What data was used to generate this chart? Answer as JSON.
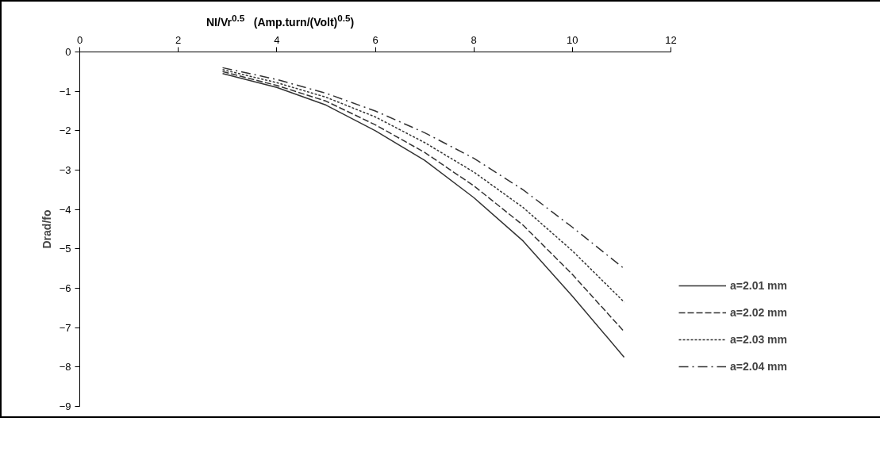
{
  "chart_data": {
    "type": "line",
    "xlabel": "NI/Vr$^{0.5}$   (Amp.turn/(Volt)$^{0.5}$)",
    "ylabel": "Drad/fo",
    "x": [
      2.9,
      4,
      5,
      6,
      7,
      8,
      9,
      10,
      11.05
    ],
    "series": [
      {
        "name": "a=2.01 mm",
        "color": "#333333",
        "line_style": "solid",
        "values": [
          -0.55,
          -0.9,
          -1.35,
          -2.0,
          -2.75,
          -3.7,
          -4.8,
          -6.2,
          -7.75
        ]
      },
      {
        "name": "a=2.02 mm",
        "color": "#333333",
        "line_style": "dashed",
        "values": [
          -0.5,
          -0.85,
          -1.25,
          -1.85,
          -2.55,
          -3.4,
          -4.4,
          -5.65,
          -7.1
        ]
      },
      {
        "name": "a=2.03 mm",
        "color": "#333333",
        "line_style": "dotted",
        "values": [
          -0.45,
          -0.78,
          -1.15,
          -1.65,
          -2.3,
          -3.05,
          -3.95,
          -5.05,
          -6.35
        ]
      },
      {
        "name": "a=2.04 mm",
        "color": "#333333",
        "line_style": "dashdot",
        "values": [
          -0.4,
          -0.7,
          -1.05,
          -1.5,
          -2.05,
          -2.7,
          -3.5,
          -4.45,
          -5.5
        ]
      }
    ],
    "xlim": [
      0,
      12
    ],
    "xticks": [
      0,
      2,
      4,
      6,
      8,
      10,
      12
    ],
    "ylim": [
      -9,
      0
    ],
    "yticks": [
      0,
      -1,
      -2,
      -3,
      -4,
      -5,
      -6,
      -7,
      -8,
      -9
    ],
    "grid": false,
    "legend": "right",
    "marker": "none"
  }
}
